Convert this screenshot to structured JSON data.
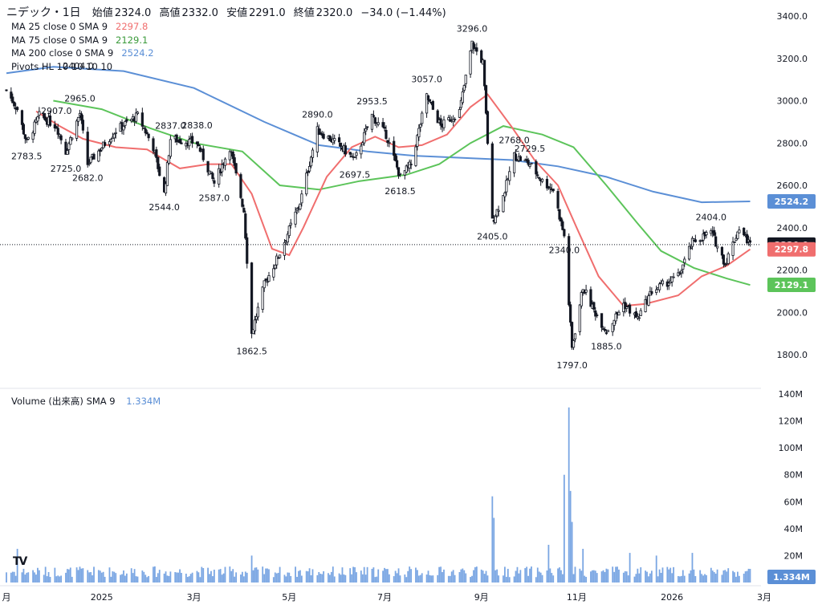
{
  "header": {
    "title": "ニデック・1日",
    "open_label": "始値",
    "open": "2324.0",
    "high_label": "高値",
    "high": "2332.0",
    "low_label": "安値",
    "low": "2291.0",
    "close_label": "終値",
    "close": "2320.0",
    "change": "−34.0 (−1.44%)"
  },
  "indicators": [
    {
      "label": "MA 25 close 0 SMA 9",
      "value": "2297.8",
      "color": "#f06e6e"
    },
    {
      "label": "MA 75 close 0 SMA 9",
      "value": "2129.1",
      "color": "#5cc45a"
    },
    {
      "label": "MA 200 close 0 SMA 9",
      "value": "2524.2",
      "color": "#5b8fd6"
    },
    {
      "label": "Pivots HL 10 10 10 10",
      "value": "",
      "color": "#131722"
    }
  ],
  "volume_legend": {
    "label": "Volume (出来高)",
    "sma": "SMA 9",
    "value": "1.334M",
    "color": "#5b8fd6"
  },
  "chart_data": {
    "type": "candlestick",
    "price_axis": {
      "ticks": [
        1800,
        2000,
        2200,
        2400,
        2600,
        2800,
        3000,
        3200,
        3400
      ],
      "tick_labels": [
        "1800.0",
        "2000.0",
        "2200.0",
        "2400.0",
        "2600.0",
        "2800.0",
        "3000.0",
        "3200.0",
        "3400.0"
      ]
    },
    "volume_axis": {
      "ticks": [
        20,
        40,
        60,
        80,
        100,
        120,
        140
      ],
      "tick_labels": [
        "20M",
        "40M",
        "60M",
        "80M",
        "100M",
        "120M",
        "140M"
      ]
    },
    "time_axis": {
      "labels": [
        "月",
        "2025",
        "3月",
        "5月",
        "7月",
        "9月",
        "11月",
        "2026",
        "3月"
      ],
      "dates": [
        "2024-11-01",
        "2025-01-01",
        "2025-03-01",
        "2025-05-01",
        "2025-07-01",
        "2025-09-01",
        "2025-11-01",
        "2026-01-01",
        "2026-03-01"
      ]
    },
    "price_tags": [
      {
        "value": 2524.2,
        "label": "2524.2",
        "color": "#5b8fd6"
      },
      {
        "value": 2320.0,
        "label": "2320.0",
        "color": "#131722"
      },
      {
        "value": 2297.8,
        "label": "2297.8",
        "color": "#f06e6e"
      },
      {
        "value": 2129.1,
        "label": "2129.1",
        "color": "#5cc45a"
      }
    ],
    "volume_tag": {
      "value": 1.334,
      "label": "1.334M",
      "color": "#5b8fd6"
    },
    "current_price": 2320.0,
    "pivots": [
      {
        "date": "2024-11-14",
        "price": 2783.5,
        "label": "2783.5",
        "pos": "below"
      },
      {
        "date": "2024-12-03",
        "price": 2907.0,
        "label": "2907.0",
        "pos": "above"
      },
      {
        "date": "2024-12-09",
        "price": 2725.0,
        "label": "2725.0",
        "pos": "below"
      },
      {
        "date": "2024-12-18",
        "price": 2965.0,
        "label": "2965.0",
        "pos": "above"
      },
      {
        "date": "2024-12-17",
        "price": 2404.0,
        "label": "2404.0",
        "pos": "above-high"
      },
      {
        "date": "2024-12-23",
        "price": 2682.0,
        "label": "2682.0",
        "pos": "below"
      },
      {
        "date": "2025-02-10",
        "price": 2544.0,
        "label": "2544.0",
        "pos": "below"
      },
      {
        "date": "2025-02-14",
        "price": 2837.0,
        "label": "2837.0",
        "pos": "above"
      },
      {
        "date": "2025-03-03",
        "price": 2838.0,
        "label": "2838.0",
        "pos": "above"
      },
      {
        "date": "2025-03-14",
        "price": 2587.0,
        "label": "2587.0",
        "pos": "below"
      },
      {
        "date": "2025-04-07",
        "price": 1862.5,
        "label": "1862.5",
        "pos": "below"
      },
      {
        "date": "2025-05-19",
        "price": 2890.0,
        "label": "2890.0",
        "pos": "above"
      },
      {
        "date": "2025-06-12",
        "price": 2697.5,
        "label": "2697.5",
        "pos": "below"
      },
      {
        "date": "2025-06-23",
        "price": 2953.5,
        "label": "2953.5",
        "pos": "above"
      },
      {
        "date": "2025-07-11",
        "price": 2618.5,
        "label": "2618.5",
        "pos": "below"
      },
      {
        "date": "2025-07-28",
        "price": 3057.0,
        "label": "3057.0",
        "pos": "above"
      },
      {
        "date": "2025-08-26",
        "price": 3296.0,
        "label": "3296.0",
        "pos": "above"
      },
      {
        "date": "2025-09-08",
        "price": 2405.0,
        "label": "2405.0",
        "pos": "below"
      },
      {
        "date": "2025-09-22",
        "price": 2768.0,
        "label": "2768.0",
        "pos": "above"
      },
      {
        "date": "2025-10-02",
        "price": 2729.5,
        "label": "2729.5",
        "pos": "above"
      },
      {
        "date": "2025-10-24",
        "price": 2340.0,
        "label": "2340.0",
        "pos": "below"
      },
      {
        "date": "2025-10-29",
        "price": 1797.0,
        "label": "1797.0",
        "pos": "below"
      },
      {
        "date": "2025-11-20",
        "price": 1885.0,
        "label": "1885.0",
        "pos": "below"
      },
      {
        "date": "2026-01-26",
        "price": 2404.0,
        "label": "2404.0",
        "pos": "above"
      }
    ],
    "price_path": [
      [
        "2024-11-01",
        3050
      ],
      [
        "2024-11-08",
        2960
      ],
      [
        "2024-11-14",
        2800
      ],
      [
        "2024-11-22",
        2930
      ],
      [
        "2024-12-03",
        2880
      ],
      [
        "2024-12-09",
        2760
      ],
      [
        "2024-12-18",
        2940
      ],
      [
        "2024-12-23",
        2700
      ],
      [
        "2025-01-10",
        2860
      ],
      [
        "2025-01-24",
        2930
      ],
      [
        "2025-02-03",
        2780
      ],
      [
        "2025-02-10",
        2560
      ],
      [
        "2025-02-14",
        2820
      ],
      [
        "2025-03-03",
        2800
      ],
      [
        "2025-03-14",
        2610
      ],
      [
        "2025-03-24",
        2780
      ],
      [
        "2025-04-02",
        2480
      ],
      [
        "2025-04-07",
        1900
      ],
      [
        "2025-04-15",
        2130
      ],
      [
        "2025-04-25",
        2280
      ],
      [
        "2025-05-08",
        2520
      ],
      [
        "2025-05-19",
        2860
      ],
      [
        "2025-06-02",
        2790
      ],
      [
        "2025-06-12",
        2720
      ],
      [
        "2025-06-23",
        2930
      ],
      [
        "2025-07-02",
        2840
      ],
      [
        "2025-07-11",
        2640
      ],
      [
        "2025-07-18",
        2700
      ],
      [
        "2025-07-28",
        3020
      ],
      [
        "2025-08-06",
        2880
      ],
      [
        "2025-08-18",
        2950
      ],
      [
        "2025-08-26",
        3270
      ],
      [
        "2025-09-02",
        3180
      ],
      [
        "2025-09-08",
        2430
      ],
      [
        "2025-09-15",
        2550
      ],
      [
        "2025-09-22",
        2740
      ],
      [
        "2025-10-02",
        2700
      ],
      [
        "2025-10-10",
        2620
      ],
      [
        "2025-10-17",
        2580
      ],
      [
        "2025-10-24",
        2360
      ],
      [
        "2025-10-29",
        1830
      ],
      [
        "2025-11-05",
        2120
      ],
      [
        "2025-11-12",
        2010
      ],
      [
        "2025-11-20",
        1910
      ],
      [
        "2025-12-01",
        2040
      ],
      [
        "2025-12-10",
        1970
      ],
      [
        "2025-12-19",
        2100
      ],
      [
        "2026-01-05",
        2170
      ],
      [
        "2026-01-14",
        2330
      ],
      [
        "2026-01-26",
        2380
      ],
      [
        "2026-02-04",
        2230
      ],
      [
        "2026-02-13",
        2400
      ],
      [
        "2026-02-20",
        2320
      ]
    ],
    "ma25": [
      [
        "2024-11-20",
        2950
      ],
      [
        "2024-12-05",
        2880
      ],
      [
        "2024-12-20",
        2820
      ],
      [
        "2025-01-10",
        2780
      ],
      [
        "2025-01-30",
        2770
      ],
      [
        "2025-02-20",
        2680
      ],
      [
        "2025-03-10",
        2700
      ],
      [
        "2025-03-25",
        2700
      ],
      [
        "2025-04-07",
        2560
      ],
      [
        "2025-04-20",
        2300
      ],
      [
        "2025-05-01",
        2270
      ],
      [
        "2025-05-10",
        2400
      ],
      [
        "2025-05-25",
        2640
      ],
      [
        "2025-06-10",
        2780
      ],
      [
        "2025-06-25",
        2830
      ],
      [
        "2025-07-10",
        2780
      ],
      [
        "2025-07-25",
        2790
      ],
      [
        "2025-08-10",
        2840
      ],
      [
        "2025-08-25",
        2970
      ],
      [
        "2025-09-05",
        3030
      ],
      [
        "2025-09-20",
        2880
      ],
      [
        "2025-10-05",
        2720
      ],
      [
        "2025-10-20",
        2600
      ],
      [
        "2025-11-01",
        2400
      ],
      [
        "2025-11-15",
        2170
      ],
      [
        "2025-12-01",
        2030
      ],
      [
        "2025-12-15",
        2040
      ],
      [
        "2026-01-05",
        2080
      ],
      [
        "2026-01-20",
        2170
      ],
      [
        "2026-02-05",
        2220
      ],
      [
        "2026-02-20",
        2297.8
      ]
    ],
    "ma75": [
      [
        "2024-12-01",
        3000
      ],
      [
        "2025-01-01",
        2960
      ],
      [
        "2025-02-01",
        2870
      ],
      [
        "2025-03-01",
        2800
      ],
      [
        "2025-04-01",
        2760
      ],
      [
        "2025-04-25",
        2600
      ],
      [
        "2025-05-20",
        2580
      ],
      [
        "2025-06-15",
        2620
      ],
      [
        "2025-07-15",
        2650
      ],
      [
        "2025-08-05",
        2700
      ],
      [
        "2025-08-25",
        2800
      ],
      [
        "2025-09-15",
        2880
      ],
      [
        "2025-10-10",
        2840
      ],
      [
        "2025-10-30",
        2780
      ],
      [
        "2025-11-20",
        2600
      ],
      [
        "2025-12-10",
        2420
      ],
      [
        "2025-12-25",
        2290
      ],
      [
        "2026-01-15",
        2210
      ],
      [
        "2026-02-05",
        2160
      ],
      [
        "2026-02-20",
        2129.1
      ]
    ],
    "ma200": [
      [
        "2024-11-01",
        3130
      ],
      [
        "2024-12-01",
        3160
      ],
      [
        "2025-01-15",
        3140
      ],
      [
        "2025-03-01",
        3060
      ],
      [
        "2025-04-15",
        2900
      ],
      [
        "2025-05-20",
        2790
      ],
      [
        "2025-06-20",
        2760
      ],
      [
        "2025-07-20",
        2740
      ],
      [
        "2025-08-20",
        2730
      ],
      [
        "2025-09-20",
        2720
      ],
      [
        "2025-10-20",
        2690
      ],
      [
        "2025-11-20",
        2640
      ],
      [
        "2025-12-20",
        2570
      ],
      [
        "2026-01-20",
        2520
      ],
      [
        "2026-02-20",
        2524.2
      ]
    ],
    "volume_spikes": [
      [
        "2024-11-08",
        25
      ],
      [
        "2025-04-07",
        20
      ],
      [
        "2025-09-08",
        64
      ],
      [
        "2025-09-09",
        48
      ],
      [
        "2025-10-24",
        80
      ],
      [
        "2025-10-27",
        130
      ],
      [
        "2025-10-28",
        68
      ],
      [
        "2025-10-29",
        45
      ],
      [
        "2025-10-14",
        28
      ],
      [
        "2025-11-05",
        25
      ],
      [
        "2025-12-05",
        22
      ],
      [
        "2026-01-14",
        22
      ],
      [
        "2025-12-22",
        20
      ]
    ]
  }
}
